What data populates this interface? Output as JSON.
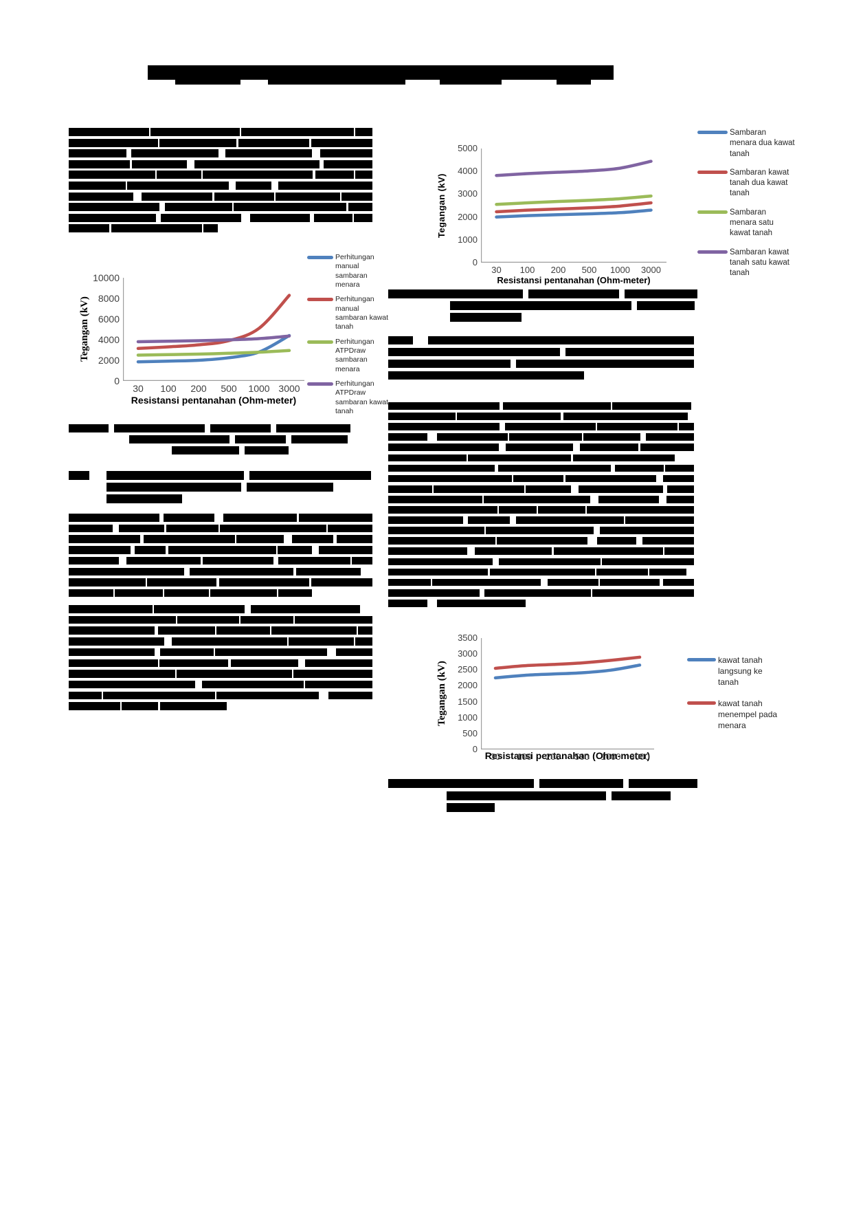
{
  "page": {
    "background_color": "#ffffff",
    "description": "Two-column academic paper page; all body text is redacted with black bars; three Excel-style line charts remain visible"
  },
  "colors": {
    "series_blue": "#4F81BD",
    "series_red": "#C0504D",
    "series_green": "#9BBB59",
    "series_purple": "#8064A2",
    "axis_gray": "#9d9d9d",
    "redaction_black": "#000000"
  },
  "chart_data": [
    {
      "type": "line",
      "title": "",
      "categories": [
        "30",
        "100",
        "200",
        "500",
        "1000",
        "3000"
      ],
      "xlabel": "Resistansi pentanahan (Ohm-meter)",
      "ylabel": "Tegangan (kV)",
      "ylim": [
        0,
        10000
      ],
      "ytick_step": 2000,
      "yticks": [
        "10000",
        "8000",
        "6000",
        "4000",
        "2000",
        "0"
      ],
      "grid": false,
      "legend_position": "right",
      "series": [
        {
          "name": "Perhitungan manual sambaran menara",
          "color": "#4F81BD",
          "values": [
            1850,
            1920,
            2000,
            2250,
            2800,
            4400
          ]
        },
        {
          "name": "Perhitungan manual sambaran kawat tanah",
          "color": "#C0504D",
          "values": [
            3150,
            3300,
            3500,
            3900,
            5100,
            8300
          ]
        },
        {
          "name": "Perhitungan ATPDraw sambaran menara",
          "color": "#9BBB59",
          "values": [
            2500,
            2550,
            2600,
            2680,
            2780,
            2950
          ]
        },
        {
          "name": "Perhitungan ATPDraw sambaran kawat tanah",
          "color": "#8064A2",
          "values": [
            3800,
            3850,
            3900,
            3980,
            4100,
            4350
          ]
        }
      ]
    },
    {
      "type": "line",
      "title": "",
      "categories": [
        "30",
        "100",
        "200",
        "500",
        "1000",
        "3000"
      ],
      "xlabel": "Resistansi pentanahan (Ohm-meter)",
      "ylabel": "Tegangan (kV)",
      "ylim": [
        0,
        5000
      ],
      "ytick_step": 1000,
      "yticks": [
        "5000",
        "4000",
        "3000",
        "2000",
        "1000",
        "0"
      ],
      "grid": false,
      "legend_position": "right",
      "series": [
        {
          "name": "Sambaran menara dua kawat tanah",
          "color": "#4F81BD",
          "values": [
            2000,
            2060,
            2100,
            2140,
            2190,
            2300
          ]
        },
        {
          "name": "Sambaran kawat tanah dua kawat tanah",
          "color": "#C0504D",
          "values": [
            2230,
            2300,
            2350,
            2400,
            2480,
            2620
          ]
        },
        {
          "name": "Sambaran menara satu kawat tanah",
          "color": "#9BBB59",
          "values": [
            2550,
            2620,
            2680,
            2730,
            2800,
            2920
          ]
        },
        {
          "name": "Sambaran kawat tanah satu kawat tanah",
          "color": "#8064A2",
          "values": [
            3820,
            3900,
            3960,
            4020,
            4140,
            4440
          ]
        }
      ]
    },
    {
      "type": "line",
      "title": "",
      "categories": [
        "30",
        "100",
        "200",
        "500",
        "1000",
        "3000"
      ],
      "xlabel": "Resistansi pentanahan (Ohm-meter)",
      "ylabel": "Tegangan (kV)",
      "ylim": [
        0,
        3500
      ],
      "ytick_step": 500,
      "yticks": [
        "3500",
        "3000",
        "2500",
        "2000",
        "1500",
        "1000",
        "500",
        "0"
      ],
      "grid": false,
      "legend_position": "right",
      "series": [
        {
          "name": "kawat tanah langsung ke tanah",
          "color": "#4F81BD",
          "values": [
            2250,
            2330,
            2370,
            2410,
            2490,
            2650
          ]
        },
        {
          "name": "kawat tanah menempel pada menara",
          "color": "#C0504D",
          "values": [
            2550,
            2630,
            2670,
            2720,
            2800,
            2900
          ]
        }
      ]
    }
  ]
}
